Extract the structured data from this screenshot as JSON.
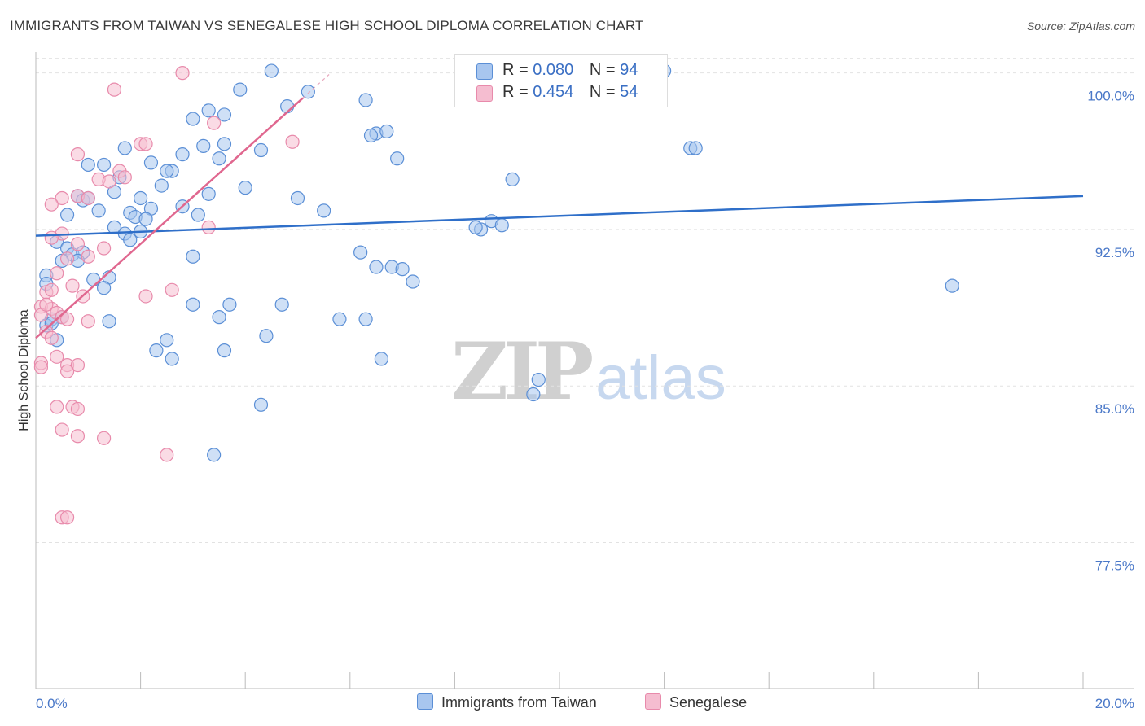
{
  "header": {
    "title": "IMMIGRANTS FROM TAIWAN VS SENEGALESE HIGH SCHOOL DIPLOMA CORRELATION CHART",
    "source": "Source: ZipAtlas.com"
  },
  "watermark": {
    "zip": "ZIP",
    "atlas": "atlas"
  },
  "legend": {
    "taiwan": {
      "r_label": "R =",
      "r_value": "0.080",
      "n_label": "N =",
      "n_value": "94"
    },
    "senegalese": {
      "r_label": "R =",
      "r_value": "0.454",
      "n_label": "N =",
      "n_value": "54"
    }
  },
  "bottom_legend": {
    "taiwan_label": "Immigrants from Taiwan",
    "senegalese_label": "Senegalese"
  },
  "colors": {
    "taiwan_fill": "#a8c6ef",
    "taiwan_stroke": "#5b8fd6",
    "taiwan_line": "#2f6fc9",
    "senegalese_fill": "#f5bdd0",
    "senegalese_stroke": "#e88aab",
    "senegalese_line": "#e0678f"
  },
  "chart_data": {
    "type": "scatter",
    "title": "IMMIGRANTS FROM TAIWAN VS SENEGALESE HIGH SCHOOL DIPLOMA CORRELATION CHART",
    "xlabel": "",
    "ylabel": "High School Diploma",
    "xlim": [
      0,
      20
    ],
    "ylim": [
      70.5,
      101.0
    ],
    "x_tick_labels": [
      "0.0%",
      "20.0%"
    ],
    "y_ticks": [
      100.0,
      92.5,
      85.0,
      77.5
    ],
    "y_tick_labels": [
      "100.0%",
      "92.5%",
      "85.0%",
      "77.5%"
    ],
    "grid": true,
    "series": [
      {
        "name": "Immigrants from Taiwan",
        "trend": {
          "x": [
            0,
            20
          ],
          "y": [
            92.2,
            94.1
          ]
        },
        "points": [
          [
            4.5,
            100.1
          ],
          [
            12.0,
            100.1
          ],
          [
            3.9,
            99.2
          ],
          [
            5.2,
            99.1
          ],
          [
            6.3,
            98.7
          ],
          [
            3.3,
            98.2
          ],
          [
            3.6,
            98.0
          ],
          [
            4.8,
            98.4
          ],
          [
            3.0,
            97.8
          ],
          [
            6.5,
            97.1
          ],
          [
            6.7,
            97.2
          ],
          [
            6.4,
            97.0
          ],
          [
            1.7,
            96.4
          ],
          [
            3.2,
            96.5
          ],
          [
            3.6,
            96.6
          ],
          [
            4.3,
            96.3
          ],
          [
            2.8,
            96.1
          ],
          [
            3.5,
            95.9
          ],
          [
            6.9,
            95.9
          ],
          [
            12.5,
            96.4
          ],
          [
            12.6,
            96.4
          ],
          [
            1.0,
            95.6
          ],
          [
            1.3,
            95.6
          ],
          [
            2.2,
            95.7
          ],
          [
            2.6,
            95.3
          ],
          [
            2.5,
            95.3
          ],
          [
            1.6,
            95.0
          ],
          [
            2.4,
            94.6
          ],
          [
            9.1,
            94.9
          ],
          [
            4.0,
            94.5
          ],
          [
            1.5,
            94.3
          ],
          [
            3.3,
            94.2
          ],
          [
            0.8,
            94.1
          ],
          [
            2.0,
            94.0
          ],
          [
            5.0,
            94.0
          ],
          [
            0.9,
            93.9
          ],
          [
            1.2,
            93.4
          ],
          [
            1.8,
            93.3
          ],
          [
            2.2,
            93.5
          ],
          [
            2.8,
            93.6
          ],
          [
            3.1,
            93.2
          ],
          [
            5.5,
            93.4
          ],
          [
            0.6,
            93.2
          ],
          [
            1.9,
            93.1
          ],
          [
            8.7,
            92.9
          ],
          [
            8.9,
            92.7
          ],
          [
            1.5,
            92.6
          ],
          [
            1.7,
            92.3
          ],
          [
            2.0,
            92.4
          ],
          [
            8.5,
            92.5
          ],
          [
            8.4,
            92.6
          ],
          [
            1.8,
            92.0
          ],
          [
            0.4,
            91.9
          ],
          [
            0.6,
            91.6
          ],
          [
            0.7,
            91.3
          ],
          [
            0.9,
            91.4
          ],
          [
            0.5,
            91.0
          ],
          [
            0.8,
            91.0
          ],
          [
            3.0,
            91.2
          ],
          [
            6.2,
            91.4
          ],
          [
            0.2,
            90.3
          ],
          [
            1.1,
            90.1
          ],
          [
            1.4,
            90.2
          ],
          [
            6.5,
            90.7
          ],
          [
            6.8,
            90.7
          ],
          [
            7.0,
            90.6
          ],
          [
            7.2,
            90.0
          ],
          [
            1.3,
            89.7
          ],
          [
            3.0,
            88.9
          ],
          [
            3.7,
            88.9
          ],
          [
            4.7,
            88.9
          ],
          [
            17.5,
            89.8
          ],
          [
            0.2,
            89.9
          ],
          [
            0.3,
            88.2
          ],
          [
            0.5,
            88.3
          ],
          [
            1.4,
            88.1
          ],
          [
            3.5,
            88.3
          ],
          [
            5.8,
            88.2
          ],
          [
            6.3,
            88.2
          ],
          [
            0.4,
            87.2
          ],
          [
            2.5,
            87.2
          ],
          [
            2.3,
            86.7
          ],
          [
            3.6,
            86.7
          ],
          [
            4.4,
            87.4
          ],
          [
            2.6,
            86.3
          ],
          [
            6.6,
            86.3
          ],
          [
            9.6,
            85.3
          ],
          [
            9.5,
            84.6
          ],
          [
            4.3,
            84.1
          ],
          [
            3.4,
            81.7
          ],
          [
            0.2,
            87.9
          ],
          [
            0.3,
            88.0
          ],
          [
            1.0,
            94.0
          ],
          [
            2.1,
            93.0
          ]
        ]
      },
      {
        "name": "Senegalese",
        "trend": {
          "x": [
            0,
            5.1
          ],
          "y": [
            87.3,
            98.8
          ]
        },
        "points": [
          [
            2.8,
            100.0
          ],
          [
            1.5,
            99.2
          ],
          [
            3.4,
            97.6
          ],
          [
            4.9,
            96.7
          ],
          [
            2.0,
            96.6
          ],
          [
            2.1,
            96.6
          ],
          [
            0.8,
            96.1
          ],
          [
            1.6,
            95.3
          ],
          [
            1.7,
            95.0
          ],
          [
            1.2,
            94.9
          ],
          [
            1.4,
            94.8
          ],
          [
            0.5,
            94.0
          ],
          [
            0.8,
            94.1
          ],
          [
            0.3,
            93.7
          ],
          [
            1.0,
            94.0
          ],
          [
            3.3,
            92.6
          ],
          [
            0.5,
            92.3
          ],
          [
            0.3,
            92.1
          ],
          [
            0.8,
            91.8
          ],
          [
            1.3,
            91.6
          ],
          [
            0.6,
            91.1
          ],
          [
            0.4,
            90.4
          ],
          [
            0.7,
            89.8
          ],
          [
            0.2,
            89.5
          ],
          [
            0.3,
            89.6
          ],
          [
            2.1,
            89.3
          ],
          [
            2.6,
            89.6
          ],
          [
            0.9,
            89.3
          ],
          [
            0.1,
            88.8
          ],
          [
            0.3,
            88.7
          ],
          [
            0.4,
            88.5
          ],
          [
            0.5,
            88.3
          ],
          [
            0.6,
            88.2
          ],
          [
            0.1,
            88.4
          ],
          [
            1.0,
            88.1
          ],
          [
            0.2,
            87.6
          ],
          [
            0.3,
            87.3
          ],
          [
            0.1,
            86.1
          ],
          [
            0.1,
            85.9
          ],
          [
            0.4,
            86.4
          ],
          [
            0.6,
            86.0
          ],
          [
            0.8,
            86.0
          ],
          [
            0.6,
            85.7
          ],
          [
            0.4,
            84.0
          ],
          [
            0.7,
            84.0
          ],
          [
            0.8,
            83.9
          ],
          [
            0.5,
            82.9
          ],
          [
            0.8,
            82.6
          ],
          [
            1.3,
            82.5
          ],
          [
            2.5,
            81.7
          ],
          [
            0.5,
            78.7
          ],
          [
            0.6,
            78.7
          ],
          [
            0.2,
            88.9
          ],
          [
            1.0,
            91.2
          ]
        ]
      }
    ]
  }
}
